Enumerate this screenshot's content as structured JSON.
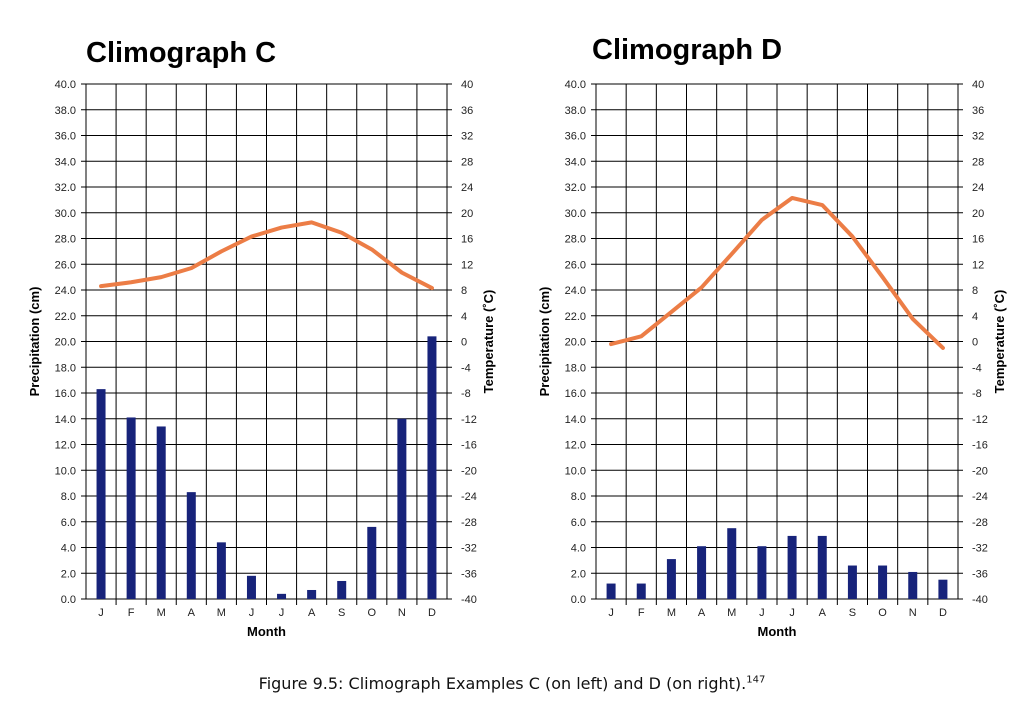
{
  "figure": {
    "caption": "Figure 9.5: Climograph Examples C (on left) and D (on right).",
    "footnote_ref": "147"
  },
  "colors": {
    "bar": "#17237a",
    "line": "#ec7d46",
    "grid": "#000000"
  },
  "chart_data": [
    {
      "type": "bar",
      "title": "Climograph C",
      "xlabel": "Month",
      "ylabel": "Precipitation (cm)",
      "y2label": "Temperature (˚C)",
      "categories": [
        "J",
        "F",
        "M",
        "A",
        "M",
        "J",
        "J",
        "A",
        "S",
        "O",
        "N",
        "D"
      ],
      "ylim": [
        0,
        40
      ],
      "y2lim": [
        -40,
        40
      ],
      "yticks": [
        "0.0",
        "2.0",
        "4.0",
        "6.0",
        "8.0",
        "10.0",
        "12.0",
        "14.0",
        "16.0",
        "18.0",
        "20.0",
        "22.0",
        "24.0",
        "26.0",
        "28.0",
        "30.0",
        "32.0",
        "34.0",
        "36.0",
        "38.0",
        "40.0"
      ],
      "y2ticks": [
        "-40",
        "-36",
        "-32",
        "-28",
        "-24",
        "-20",
        "-16",
        "-12",
        "-8",
        "-4",
        "0",
        "4",
        "8",
        "12",
        "16",
        "20",
        "24",
        "28",
        "32",
        "36",
        "40"
      ],
      "grid": true,
      "series": [
        {
          "kind": "bar",
          "axis": "left",
          "values": [
            16.3,
            14.1,
            13.4,
            8.3,
            4.4,
            1.8,
            0.4,
            0.7,
            1.4,
            5.6,
            14.0,
            20.4
          ]
        },
        {
          "kind": "line",
          "axis": "right",
          "values": [
            8.6,
            9.2,
            10.0,
            11.4,
            14.0,
            16.3,
            17.7,
            18.5,
            16.9,
            14.3,
            10.7,
            8.3
          ]
        }
      ]
    },
    {
      "type": "bar",
      "title": "Climograph D",
      "xlabel": "Month",
      "ylabel": "Precipitation (cm)",
      "y2label": "Temperature (˚C)",
      "categories": [
        "J",
        "F",
        "M",
        "A",
        "M",
        "J",
        "J",
        "A",
        "S",
        "O",
        "N",
        "D"
      ],
      "ylim": [
        0,
        40
      ],
      "y2lim": [
        -40,
        40
      ],
      "yticks": [
        "0.0",
        "2.0",
        "4.0",
        "6.0",
        "8.0",
        "10.0",
        "12.0",
        "14.0",
        "16.0",
        "18.0",
        "20.0",
        "22.0",
        "24.0",
        "26.0",
        "28.0",
        "30.0",
        "32.0",
        "34.0",
        "36.0",
        "38.0",
        "40.0"
      ],
      "y2ticks": [
        "-40",
        "-36",
        "-32",
        "-28",
        "-24",
        "-20",
        "-16",
        "-12",
        "-8",
        "-4",
        "0",
        "4",
        "8",
        "12",
        "16",
        "20",
        "24",
        "28",
        "32",
        "36",
        "40"
      ],
      "grid": true,
      "series": [
        {
          "kind": "bar",
          "axis": "left",
          "values": [
            1.2,
            1.2,
            3.1,
            4.1,
            5.5,
            4.1,
            4.9,
            4.9,
            2.6,
            2.6,
            2.1,
            1.5
          ]
        },
        {
          "kind": "line",
          "axis": "right",
          "values": [
            -0.4,
            0.8,
            4.6,
            8.4,
            13.6,
            18.9,
            22.3,
            21.2,
            16.3,
            10.0,
            3.5,
            -1.0
          ]
        }
      ]
    }
  ]
}
